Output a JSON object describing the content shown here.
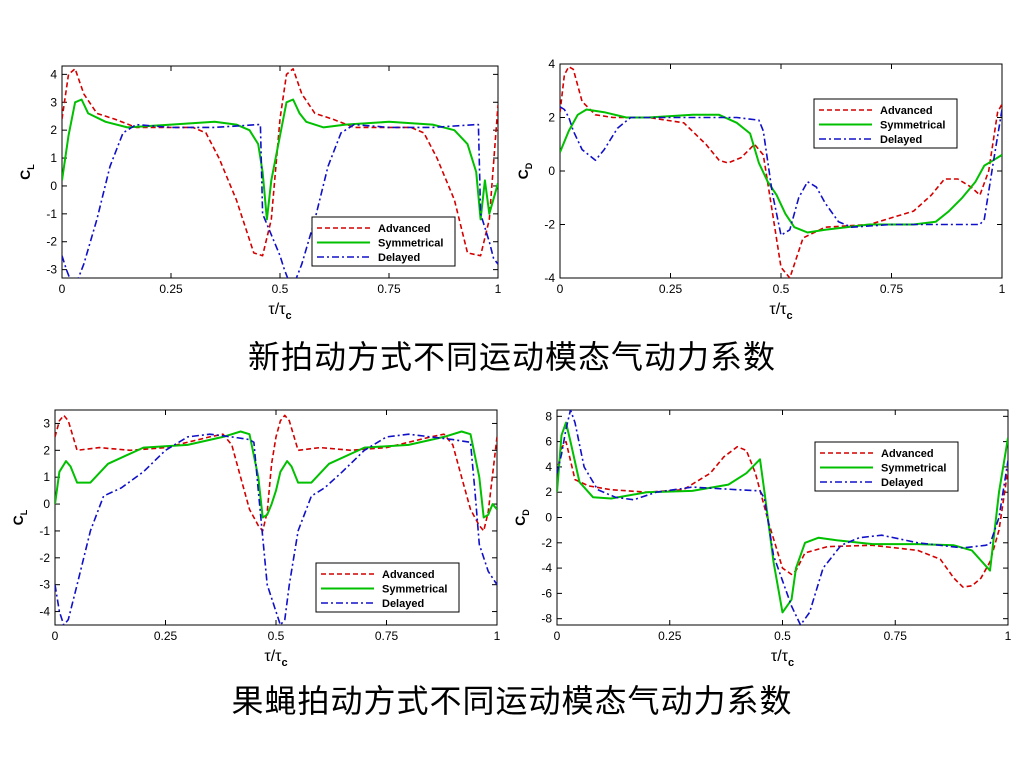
{
  "captions": {
    "top": "新拍动方式不同运动模态气动力系数",
    "bottom": "果蝇拍动方式不同运动模态气动力系数"
  },
  "colors": {
    "Advanced": "#d40000",
    "Symmetrical": "#00c000",
    "Delayed": "#1010c8"
  },
  "chart_data": [
    {
      "type": "line",
      "xlabel": "τ/τc",
      "ylabel": "CL",
      "xlim": [
        0,
        1
      ],
      "ylim": [
        -3.3,
        4.3
      ],
      "xticks": [
        "0",
        "0.25",
        "0.5",
        "0.75",
        "1"
      ],
      "yticks": [
        -3,
        -2,
        -1,
        0,
        1,
        2,
        3,
        4
      ],
      "legend": "bottom-right",
      "series": [
        {
          "name": "Advanced",
          "x": [
            0,
            0.015,
            0.03,
            0.05,
            0.08,
            0.12,
            0.17,
            0.25,
            0.3,
            0.33,
            0.36,
            0.4,
            0.44,
            0.46,
            0.48,
            0.5,
            0.515,
            0.53,
            0.55,
            0.58,
            0.62,
            0.67,
            0.75,
            0.8,
            0.83,
            0.86,
            0.9,
            0.93,
            0.96,
            0.98,
            1.0
          ],
          "y": [
            2.4,
            4.0,
            4.2,
            3.3,
            2.6,
            2.4,
            2.1,
            2.1,
            2.1,
            1.9,
            1.0,
            -0.5,
            -2.4,
            -2.5,
            -1.2,
            2.4,
            4.0,
            4.2,
            3.3,
            2.6,
            2.4,
            2.1,
            2.1,
            2.1,
            1.9,
            1.0,
            -0.5,
            -2.4,
            -2.5,
            -1.2,
            2.9
          ]
        },
        {
          "name": "Symmetrical",
          "x": [
            0,
            0.015,
            0.03,
            0.045,
            0.06,
            0.1,
            0.15,
            0.25,
            0.35,
            0.4,
            0.43,
            0.45,
            0.46,
            0.47,
            0.48,
            0.5,
            0.515,
            0.53,
            0.545,
            0.56,
            0.6,
            0.65,
            0.75,
            0.85,
            0.9,
            0.93,
            0.95,
            0.96,
            0.97,
            0.98,
            1.0
          ],
          "y": [
            0.2,
            1.8,
            3.0,
            3.1,
            2.6,
            2.3,
            2.1,
            2.2,
            2.3,
            2.2,
            2.0,
            1.5,
            0.5,
            -1.2,
            0.2,
            1.8,
            3.0,
            3.1,
            2.6,
            2.3,
            2.1,
            2.2,
            2.3,
            2.2,
            2.0,
            1.5,
            0.5,
            -1.2,
            0.2,
            -1.0,
            0.1
          ]
        },
        {
          "name": "Delayed",
          "x": [
            0,
            0.01,
            0.02,
            0.035,
            0.05,
            0.08,
            0.11,
            0.14,
            0.17,
            0.25,
            0.35,
            0.45,
            0.455,
            0.46,
            0.5,
            0.51,
            0.52,
            0.535,
            0.55,
            0.58,
            0.61,
            0.64,
            0.67,
            0.75,
            0.85,
            0.95,
            0.955,
            0.96,
            0.98,
            0.99,
            1.0
          ],
          "y": [
            -2.5,
            -3.0,
            -3.4,
            -3.4,
            -2.8,
            -1.2,
            0.7,
            1.9,
            2.2,
            2.1,
            2.1,
            2.2,
            2.2,
            -1.0,
            -2.5,
            -3.0,
            -3.4,
            -3.4,
            -2.8,
            -1.2,
            0.7,
            1.9,
            2.2,
            2.1,
            2.1,
            2.2,
            2.2,
            -1.0,
            -2.0,
            -2.6,
            -2.8
          ]
        }
      ]
    },
    {
      "type": "line",
      "xlabel": "τ/τc",
      "ylabel": "CD",
      "xlim": [
        0,
        1
      ],
      "ylim": [
        -4,
        4
      ],
      "xticks": [
        "0",
        "0.25",
        "0.5",
        "0.75",
        "1"
      ],
      "yticks": [
        -4,
        -2,
        0,
        2,
        4
      ],
      "legend": "top-right",
      "series": [
        {
          "name": "Advanced",
          "x": [
            0,
            0.01,
            0.02,
            0.03,
            0.05,
            0.08,
            0.12,
            0.2,
            0.28,
            0.33,
            0.36,
            0.38,
            0.41,
            0.44,
            0.46,
            0.48,
            0.5,
            0.52,
            0.55,
            0.6,
            0.7,
            0.8,
            0.84,
            0.87,
            0.9,
            0.93,
            0.95,
            0.97,
            0.99,
            1.0
          ],
          "y": [
            2.2,
            3.6,
            3.9,
            3.8,
            2.6,
            2.1,
            2.0,
            2.0,
            1.8,
            1.0,
            0.4,
            0.3,
            0.5,
            1.0,
            0.6,
            -1.5,
            -3.6,
            -4.0,
            -2.5,
            -2.1,
            -2.0,
            -1.5,
            -0.9,
            -0.3,
            -0.3,
            -0.6,
            -0.9,
            0.0,
            2.2,
            2.5
          ]
        },
        {
          "name": "Symmetrical",
          "x": [
            0,
            0.02,
            0.04,
            0.06,
            0.1,
            0.15,
            0.2,
            0.3,
            0.36,
            0.4,
            0.43,
            0.45,
            0.47,
            0.49,
            0.51,
            0.53,
            0.545,
            0.56,
            0.6,
            0.7,
            0.8,
            0.85,
            0.88,
            0.91,
            0.94,
            0.96,
            0.98,
            1.0
          ],
          "y": [
            0.7,
            1.5,
            2.1,
            2.3,
            2.2,
            2.0,
            2.0,
            2.1,
            2.1,
            1.8,
            1.4,
            0.3,
            -0.4,
            -0.9,
            -1.6,
            -2.1,
            -2.2,
            -2.3,
            -2.2,
            -2.0,
            -2.0,
            -1.9,
            -1.5,
            -1.0,
            -0.4,
            0.2,
            0.4,
            0.6
          ]
        },
        {
          "name": "Delayed",
          "x": [
            0,
            0.01,
            0.02,
            0.03,
            0.05,
            0.08,
            0.1,
            0.13,
            0.16,
            0.2,
            0.3,
            0.4,
            0.45,
            0.46,
            0.48,
            0.5,
            0.52,
            0.54,
            0.56,
            0.58,
            0.6,
            0.63,
            0.66,
            0.75,
            0.85,
            0.95,
            0.96,
            0.98,
            1.0
          ],
          "y": [
            2.4,
            2.3,
            2.0,
            1.5,
            0.8,
            0.4,
            0.8,
            1.6,
            2.0,
            2.0,
            2.0,
            2.0,
            1.9,
            1.5,
            -0.8,
            -2.4,
            -2.2,
            -1.0,
            -0.4,
            -0.6,
            -1.2,
            -1.9,
            -2.1,
            -2.0,
            -2.0,
            -2.0,
            -1.8,
            0.3,
            2.3
          ]
        }
      ]
    },
    {
      "type": "line",
      "xlabel": "τ/τc",
      "ylabel": "CL",
      "xlim": [
        0,
        1
      ],
      "ylim": [
        -4.5,
        3.5
      ],
      "xticks": [
        "0",
        "0.25",
        "0.5",
        "0.75",
        "1"
      ],
      "yticks": [
        -4,
        -3,
        -2,
        -1,
        0,
        1,
        2,
        3
      ],
      "legend": "bottom-right",
      "series": [
        {
          "name": "Advanced",
          "x": [
            0,
            0.01,
            0.02,
            0.03,
            0.05,
            0.1,
            0.17,
            0.25,
            0.35,
            0.38,
            0.4,
            0.42,
            0.44,
            0.46,
            0.47,
            0.48,
            0.49,
            0.5,
            0.51,
            0.52,
            0.53,
            0.55,
            0.6,
            0.67,
            0.75,
            0.85,
            0.88,
            0.9,
            0.92,
            0.94,
            0.96,
            0.97,
            0.98,
            1.0
          ],
          "y": [
            2.5,
            3.1,
            3.3,
            3.1,
            2.0,
            2.1,
            2.0,
            2.1,
            2.5,
            2.6,
            2.2,
            1.0,
            -0.2,
            -0.8,
            -1.0,
            -0.3,
            1.5,
            2.5,
            3.1,
            3.3,
            3.1,
            2.0,
            2.1,
            2.0,
            2.1,
            2.5,
            2.6,
            2.2,
            1.0,
            -0.2,
            -0.8,
            -1.0,
            -0.3,
            2.5
          ]
        },
        {
          "name": "Symmetrical",
          "x": [
            0,
            0.01,
            0.025,
            0.035,
            0.05,
            0.08,
            0.12,
            0.2,
            0.3,
            0.38,
            0.42,
            0.44,
            0.46,
            0.47,
            0.48,
            0.49,
            0.5,
            0.51,
            0.525,
            0.535,
            0.55,
            0.58,
            0.62,
            0.7,
            0.8,
            0.88,
            0.92,
            0.94,
            0.96,
            0.97,
            0.98,
            0.99,
            1.0
          ],
          "y": [
            0.0,
            1.2,
            1.6,
            1.4,
            0.8,
            0.8,
            1.5,
            2.1,
            2.2,
            2.5,
            2.7,
            2.6,
            1.0,
            -0.5,
            -0.4,
            0.0,
            0.5,
            1.2,
            1.6,
            1.4,
            0.8,
            0.8,
            1.5,
            2.1,
            2.2,
            2.5,
            2.7,
            2.6,
            1.0,
            -0.5,
            -0.4,
            0.0,
            -0.2
          ]
        },
        {
          "name": "Delayed",
          "x": [
            0,
            0.01,
            0.02,
            0.03,
            0.05,
            0.08,
            0.11,
            0.15,
            0.2,
            0.25,
            0.3,
            0.35,
            0.4,
            0.44,
            0.45,
            0.46,
            0.48,
            0.5,
            0.51,
            0.52,
            0.53,
            0.55,
            0.58,
            0.61,
            0.65,
            0.7,
            0.75,
            0.8,
            0.85,
            0.9,
            0.94,
            0.95,
            0.96,
            0.98,
            1.0
          ],
          "y": [
            -3.0,
            -4.0,
            -4.5,
            -4.3,
            -3.0,
            -1.0,
            0.3,
            0.6,
            1.2,
            2.0,
            2.5,
            2.6,
            2.5,
            2.4,
            2.3,
            0.5,
            -3.0,
            -4.0,
            -4.5,
            -4.3,
            -3.0,
            -1.0,
            0.3,
            0.6,
            1.2,
            2.0,
            2.5,
            2.6,
            2.5,
            2.4,
            2.3,
            0.5,
            -1.5,
            -2.5,
            -3.0
          ]
        }
      ]
    },
    {
      "type": "line",
      "xlabel": "τ/τc",
      "ylabel": "CD",
      "xlim": [
        0,
        1
      ],
      "ylim": [
        -8.5,
        8.5
      ],
      "xticks": [
        "0",
        "0.25",
        "0.5",
        "0.75",
        "1"
      ],
      "yticks": [
        -8,
        -6,
        -4,
        -2,
        0,
        2,
        4,
        6,
        8
      ],
      "legend": "top-right",
      "series": [
        {
          "name": "Advanced",
          "x": [
            0,
            0.01,
            0.02,
            0.04,
            0.07,
            0.12,
            0.2,
            0.28,
            0.34,
            0.37,
            0.4,
            0.42,
            0.44,
            0.47,
            0.5,
            0.52,
            0.53,
            0.55,
            0.6,
            0.7,
            0.8,
            0.85,
            0.88,
            0.9,
            0.92,
            0.94,
            0.96,
            0.98,
            1.0
          ],
          "y": [
            3.5,
            5.5,
            6.0,
            3.0,
            2.5,
            2.2,
            2.0,
            2.2,
            3.5,
            4.8,
            5.6,
            5.3,
            3.5,
            -0.5,
            -4.0,
            -4.5,
            -4.2,
            -2.8,
            -2.3,
            -2.2,
            -2.6,
            -3.3,
            -4.8,
            -5.5,
            -5.4,
            -4.8,
            -3.5,
            -1.0,
            3.8
          ]
        },
        {
          "name": "Symmetrical",
          "x": [
            0,
            0.01,
            0.02,
            0.03,
            0.05,
            0.08,
            0.12,
            0.2,
            0.3,
            0.38,
            0.42,
            0.45,
            0.46,
            0.48,
            0.5,
            0.52,
            0.53,
            0.55,
            0.58,
            0.62,
            0.7,
            0.8,
            0.88,
            0.92,
            0.94,
            0.96,
            0.98,
            1.0
          ],
          "y": [
            2.0,
            6.5,
            7.5,
            6.0,
            2.8,
            1.6,
            1.5,
            2.0,
            2.1,
            2.6,
            3.5,
            4.6,
            2.0,
            -3.5,
            -7.5,
            -6.5,
            -4.0,
            -2.0,
            -1.6,
            -1.8,
            -2.1,
            -2.1,
            -2.2,
            -2.6,
            -3.4,
            -4.2,
            2.0,
            6.3
          ]
        },
        {
          "name": "Delayed",
          "x": [
            0,
            0.01,
            0.02,
            0.03,
            0.04,
            0.06,
            0.09,
            0.13,
            0.17,
            0.22,
            0.3,
            0.4,
            0.45,
            0.46,
            0.48,
            0.5,
            0.52,
            0.54,
            0.56,
            0.59,
            0.63,
            0.67,
            0.72,
            0.8,
            0.9,
            0.95,
            0.96,
            0.98,
            1.0
          ],
          "y": [
            3.5,
            5.0,
            7.0,
            8.5,
            7.5,
            4.0,
            2.2,
            1.6,
            1.4,
            2.0,
            2.4,
            2.2,
            2.1,
            1.5,
            -3.0,
            -5.0,
            -7.0,
            -8.5,
            -7.5,
            -4.0,
            -2.2,
            -1.6,
            -1.4,
            -2.0,
            -2.4,
            -2.2,
            -2.1,
            0.0,
            4.5
          ]
        }
      ]
    }
  ]
}
